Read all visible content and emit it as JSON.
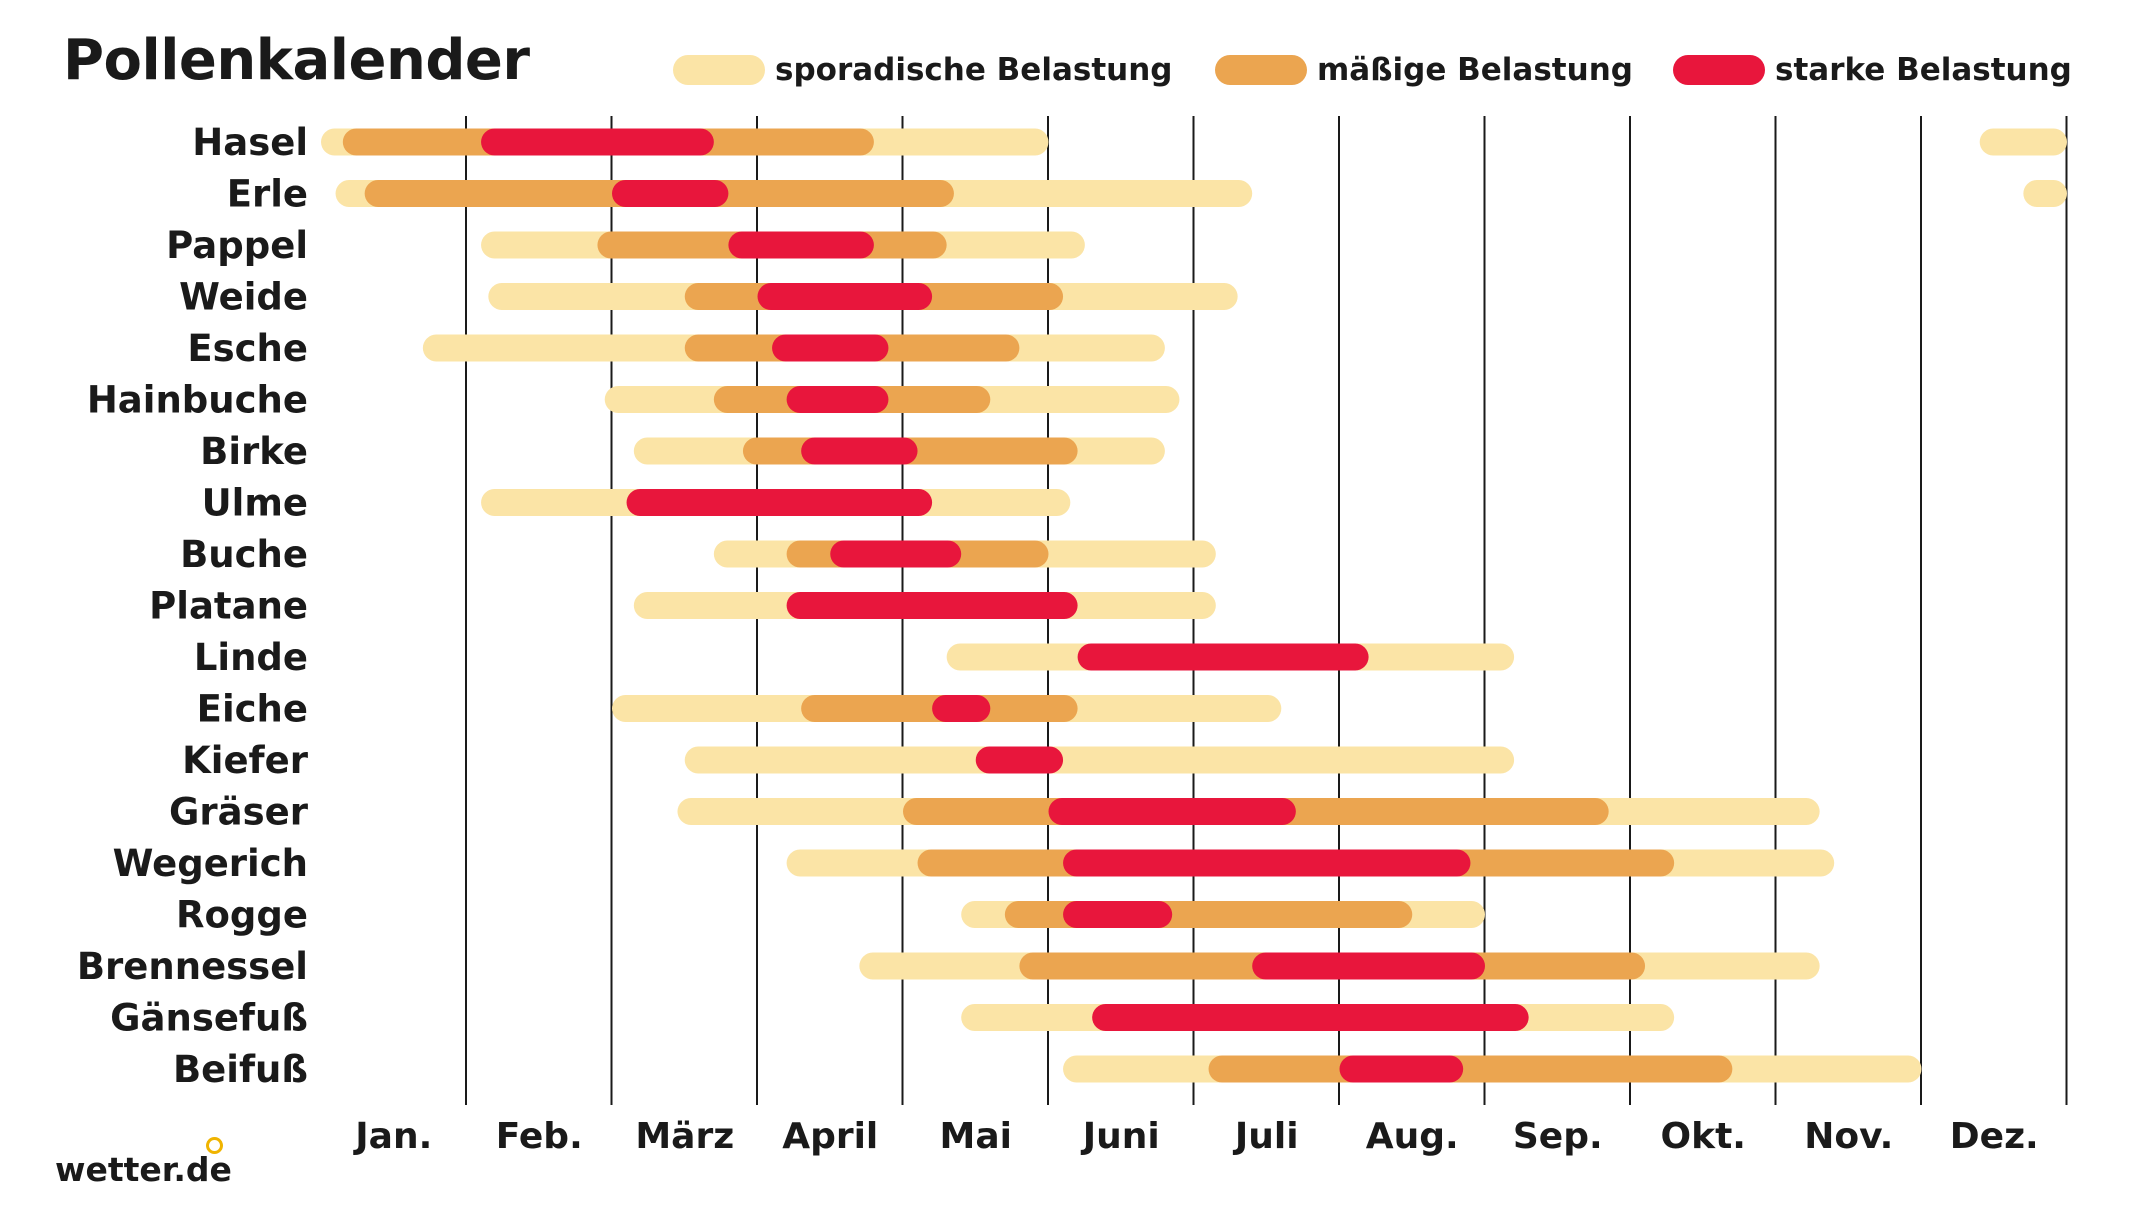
{
  "header": {
    "title": "Pollenkalender"
  },
  "legend": [
    {
      "label": "sporadische Belastung",
      "color": "#FBE4A6"
    },
    {
      "label": "mäßige Belastung",
      "color": "#EBA550"
    },
    {
      "label": "starke Belastung",
      "color": "#E8163C"
    }
  ],
  "brand": {
    "logo_text": "wetter.de"
  },
  "chart_data": {
    "type": "bar",
    "subtype": "timeline-gantt",
    "title": "Pollenkalender",
    "x_unit": "month (fractional, 0 = start of January, 12 = end of December)",
    "x_range": [
      0,
      12
    ],
    "months": [
      "Jan.",
      "Feb.",
      "März",
      "April",
      "Mai",
      "Juni",
      "Juli",
      "Aug.",
      "Sep.",
      "Okt.",
      "Nov.",
      "Dez."
    ],
    "levels": {
      "s": "sporadische Belastung",
      "m": "mäßige Belastung",
      "h": "starke Belastung"
    },
    "colors": {
      "s": "#FBE4A6",
      "m": "#EBA550",
      "h": "#E8163C"
    },
    "grid": "vertical month dividers",
    "legend_position": "top",
    "rows": [
      {
        "name": "Hasel",
        "segments": [
          {
            "start": 0.0,
            "end": 5.0,
            "level": "s"
          },
          {
            "start": 11.4,
            "end": 12.0,
            "level": "s"
          },
          {
            "start": 0.15,
            "end": 3.8,
            "level": "m"
          },
          {
            "start": 1.1,
            "end": 2.7,
            "level": "h"
          }
        ]
      },
      {
        "name": "Erle",
        "segments": [
          {
            "start": 0.1,
            "end": 6.4,
            "level": "s"
          },
          {
            "start": 11.7,
            "end": 12.0,
            "level": "s"
          },
          {
            "start": 0.3,
            "end": 4.35,
            "level": "m"
          },
          {
            "start": 2.0,
            "end": 2.8,
            "level": "h"
          }
        ]
      },
      {
        "name": "Pappel",
        "segments": [
          {
            "start": 1.1,
            "end": 5.25,
            "level": "s"
          },
          {
            "start": 1.9,
            "end": 4.3,
            "level": "m"
          },
          {
            "start": 2.8,
            "end": 3.8,
            "level": "h"
          }
        ]
      },
      {
        "name": "Weide",
        "segments": [
          {
            "start": 1.15,
            "end": 6.3,
            "level": "s"
          },
          {
            "start": 2.5,
            "end": 5.1,
            "level": "m"
          },
          {
            "start": 3.0,
            "end": 4.2,
            "level": "h"
          }
        ]
      },
      {
        "name": "Esche",
        "segments": [
          {
            "start": 0.7,
            "end": 5.8,
            "level": "s"
          },
          {
            "start": 2.5,
            "end": 4.8,
            "level": "m"
          },
          {
            "start": 3.1,
            "end": 3.9,
            "level": "h"
          }
        ]
      },
      {
        "name": "Hainbuche",
        "segments": [
          {
            "start": 1.95,
            "end": 5.9,
            "level": "s"
          },
          {
            "start": 2.7,
            "end": 4.6,
            "level": "m"
          },
          {
            "start": 3.2,
            "end": 3.9,
            "level": "h"
          }
        ]
      },
      {
        "name": "Birke",
        "segments": [
          {
            "start": 2.15,
            "end": 5.8,
            "level": "s"
          },
          {
            "start": 2.9,
            "end": 5.2,
            "level": "m"
          },
          {
            "start": 3.3,
            "end": 4.1,
            "level": "h"
          }
        ]
      },
      {
        "name": "Ulme",
        "segments": [
          {
            "start": 1.1,
            "end": 5.15,
            "level": "s"
          },
          {
            "start": 2.1,
            "end": 4.2,
            "level": "h"
          }
        ]
      },
      {
        "name": "Buche",
        "segments": [
          {
            "start": 2.7,
            "end": 6.15,
            "level": "s"
          },
          {
            "start": 3.2,
            "end": 5.0,
            "level": "m"
          },
          {
            "start": 3.5,
            "end": 4.4,
            "level": "h"
          }
        ]
      },
      {
        "name": "Platane",
        "segments": [
          {
            "start": 2.15,
            "end": 6.15,
            "level": "s"
          },
          {
            "start": 3.2,
            "end": 5.2,
            "level": "h"
          }
        ]
      },
      {
        "name": "Linde",
        "segments": [
          {
            "start": 4.3,
            "end": 8.2,
            "level": "s"
          },
          {
            "start": 5.2,
            "end": 7.2,
            "level": "h"
          }
        ]
      },
      {
        "name": "Eiche",
        "segments": [
          {
            "start": 2.0,
            "end": 6.6,
            "level": "s"
          },
          {
            "start": 3.3,
            "end": 5.2,
            "level": "m"
          },
          {
            "start": 4.2,
            "end": 4.6,
            "level": "h"
          }
        ]
      },
      {
        "name": "Kiefer",
        "segments": [
          {
            "start": 2.5,
            "end": 8.2,
            "level": "s"
          },
          {
            "start": 4.5,
            "end": 5.1,
            "level": "h"
          }
        ]
      },
      {
        "name": "Gräser",
        "segments": [
          {
            "start": 2.45,
            "end": 10.3,
            "level": "s"
          },
          {
            "start": 4.0,
            "end": 8.85,
            "level": "m"
          },
          {
            "start": 5.0,
            "end": 6.7,
            "level": "h"
          }
        ]
      },
      {
        "name": "Wegerich",
        "segments": [
          {
            "start": 3.2,
            "end": 10.4,
            "level": "s"
          },
          {
            "start": 4.1,
            "end": 9.3,
            "level": "m"
          },
          {
            "start": 5.1,
            "end": 7.9,
            "level": "h"
          }
        ]
      },
      {
        "name": "Rogge",
        "segments": [
          {
            "start": 4.4,
            "end": 8.0,
            "level": "s"
          },
          {
            "start": 4.7,
            "end": 7.5,
            "level": "m"
          },
          {
            "start": 5.1,
            "end": 5.85,
            "level": "h"
          }
        ]
      },
      {
        "name": "Brennessel",
        "segments": [
          {
            "start": 3.7,
            "end": 10.3,
            "level": "s"
          },
          {
            "start": 4.8,
            "end": 9.1,
            "level": "m"
          },
          {
            "start": 6.4,
            "end": 8.0,
            "level": "h"
          }
        ]
      },
      {
        "name": "Gänsefuß",
        "segments": [
          {
            "start": 4.4,
            "end": 9.3,
            "level": "s"
          },
          {
            "start": 5.3,
            "end": 8.3,
            "level": "h"
          }
        ]
      },
      {
        "name": "Beifuß",
        "segments": [
          {
            "start": 5.1,
            "end": 11.0,
            "level": "s"
          },
          {
            "start": 6.1,
            "end": 9.7,
            "level": "m"
          },
          {
            "start": 7.0,
            "end": 7.85,
            "level": "h"
          }
        ]
      }
    ]
  }
}
